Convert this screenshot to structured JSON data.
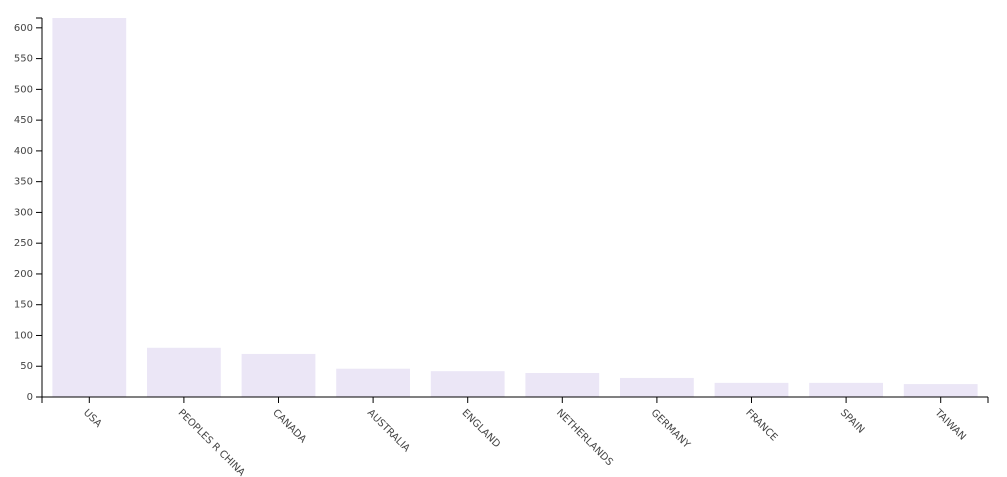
{
  "chart_data": {
    "type": "bar",
    "categories": [
      "USA",
      "PEOPLES R CHINA",
      "CANADA",
      "AUSTRALIA",
      "ENGLAND",
      "NETHERLANDS",
      "GERMANY",
      "FRANCE",
      "SPAIN",
      "TAIWAN"
    ],
    "values": [
      616,
      80,
      70,
      46,
      42,
      39,
      31,
      23,
      23,
      21
    ],
    "color": "#ebe6f6",
    "ylim": [
      0,
      616
    ],
    "yticks": [
      0,
      50,
      100,
      150,
      200,
      250,
      300,
      350,
      400,
      450,
      500,
      550,
      600
    ],
    "grid": false
  }
}
